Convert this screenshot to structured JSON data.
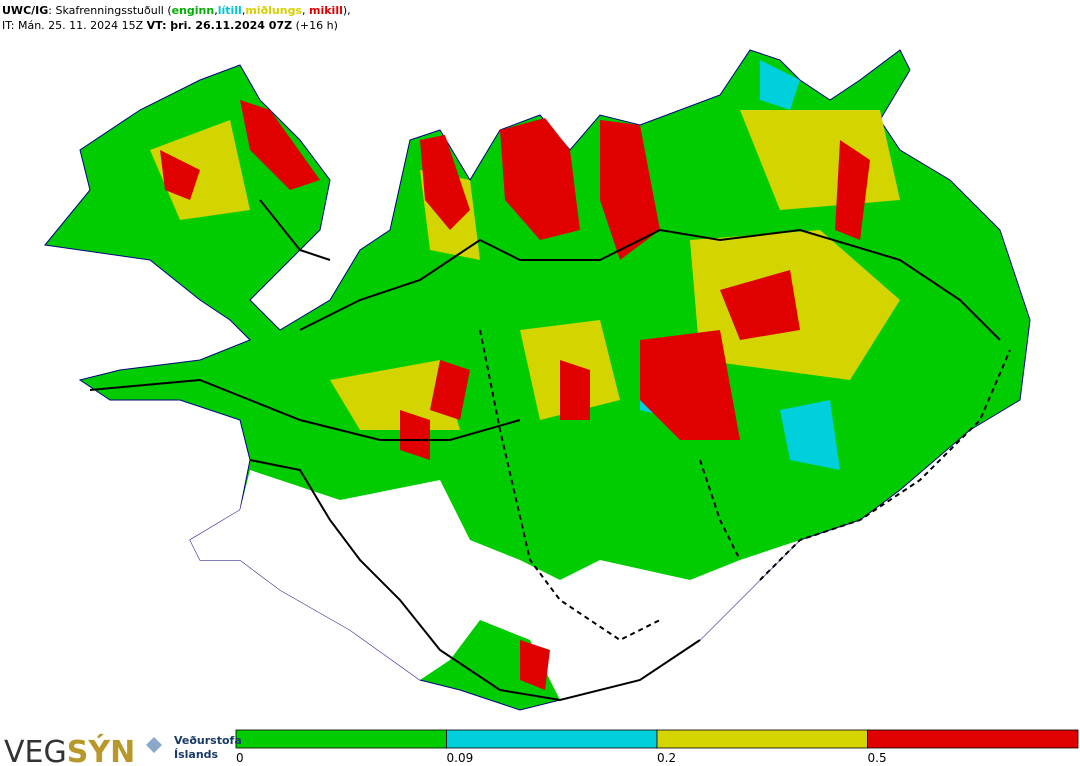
{
  "header": {
    "line1": [
      {
        "text": "UWC/IG",
        "bold": true
      },
      {
        "text": ": Skafrenningsstuðull ("
      },
      {
        "text": "enginn",
        "bold": true,
        "color": "#00b000"
      },
      {
        "text": ","
      },
      {
        "text": "lítill",
        "bold": true,
        "color": "#00c8d8"
      },
      {
        "text": ","
      },
      {
        "text": "miðlungs",
        "bold": true,
        "color": "#d8d000"
      },
      {
        "text": ", "
      },
      {
        "text": "mikill",
        "bold": true,
        "color": "#e00000"
      },
      {
        "text": "),"
      }
    ],
    "line2": [
      {
        "text": "IT: Mán. 25. 11. 2024 15Z "
      },
      {
        "text": "VT: þri. 26.11.2024 07Z",
        "bold": true
      },
      {
        "text": " (+16 h)"
      }
    ]
  },
  "legend": {
    "ticks": [
      0,
      0.09,
      0.2,
      0.5
    ],
    "colors": [
      "#00cc00",
      "#00d0dc",
      "#d4d400",
      "#e00000"
    ]
  },
  "logo": {
    "left": "VEG",
    "right": "SÝN",
    "office": [
      "Veðurstofa",
      "Íslands"
    ]
  }
}
